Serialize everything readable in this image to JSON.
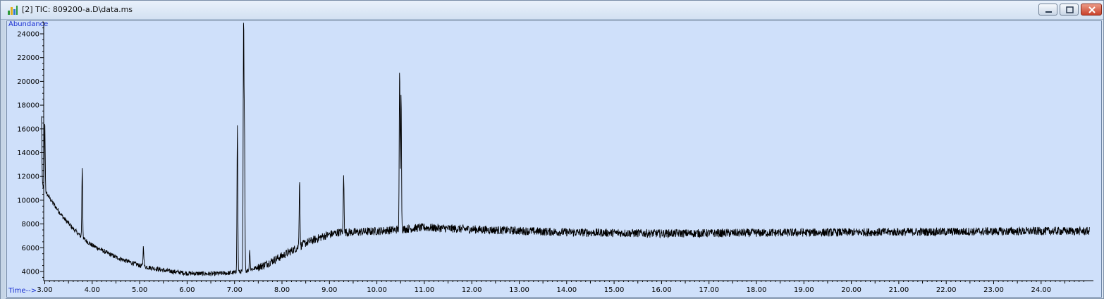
{
  "window": {
    "title": "[2] TIC: 809200-a.D\\data.ms",
    "icon": "chromatogram-app-icon",
    "controls": [
      "minimize-icon",
      "maximize-icon",
      "close-icon"
    ]
  },
  "chart_data": {
    "type": "line",
    "title": "",
    "ylabel": "Abundance",
    "xlabel": "Time-->",
    "xlim": [
      2.9,
      25.1
    ],
    "ylim": [
      3000,
      25200
    ],
    "x_ticks": [
      "3.00",
      "4.00",
      "5.00",
      "6.00",
      "7.00",
      "8.00",
      "9.00",
      "10.00",
      "11.00",
      "12.00",
      "13.00",
      "14.00",
      "15.00",
      "16.00",
      "17.00",
      "18.00",
      "19.00",
      "20.00",
      "21.00",
      "22.00",
      "23.00",
      "24.00"
    ],
    "y_ticks": [
      "4000",
      "6000",
      "8000",
      "10000",
      "12000",
      "14000",
      "16000",
      "18000",
      "20000",
      "22000",
      "24000"
    ],
    "grid": false,
    "line_color": "#000000",
    "background_color": "#cfe0fa",
    "baseline": {
      "x": [
        2.93,
        3.0,
        3.2,
        3.4,
        3.6,
        3.8,
        4.0,
        4.5,
        5.0,
        5.5,
        6.0,
        6.5,
        7.0,
        7.3,
        7.6,
        8.0,
        8.5,
        8.9,
        9.2,
        9.5,
        10.0,
        11.0,
        12.0,
        14.0,
        16.0,
        18.0,
        20.0,
        22.0,
        24.0,
        25.0
      ],
      "y": [
        11500,
        10800,
        9600,
        8500,
        7600,
        6800,
        6200,
        5200,
        4500,
        4100,
        3850,
        3800,
        3900,
        4100,
        4500,
        5300,
        6400,
        7000,
        7300,
        7300,
        7400,
        7700,
        7550,
        7300,
        7200,
        7250,
        7300,
        7350,
        7400,
        7400
      ]
    },
    "noise_amplitude": 350,
    "peaks": [
      {
        "x": 2.93,
        "y": 17000
      },
      {
        "x": 3.0,
        "y": 16700
      },
      {
        "x": 3.79,
        "y": 12800
      },
      {
        "x": 5.08,
        "y": 6100
      },
      {
        "x": 7.06,
        "y": 16400
      },
      {
        "x": 7.19,
        "y": 24800
      },
      {
        "x": 7.21,
        "y": 15400
      },
      {
        "x": 7.32,
        "y": 5800
      },
      {
        "x": 8.37,
        "y": 11800
      },
      {
        "x": 9.3,
        "y": 12000
      },
      {
        "x": 10.48,
        "y": 21100
      },
      {
        "x": 10.51,
        "y": 19400
      }
    ]
  }
}
